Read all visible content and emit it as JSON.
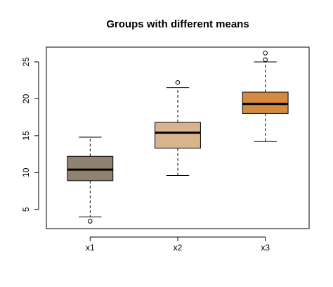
{
  "chart_data": {
    "type": "box",
    "title": "Groups with different means",
    "xlabel": "",
    "ylabel": "",
    "ylim": [
      2.4,
      27.0
    ],
    "yticks": [
      5,
      10,
      15,
      20,
      25
    ],
    "categories": [
      "x1",
      "x2",
      "x3"
    ],
    "boxes": [
      {
        "category": "x1",
        "min": 4.0,
        "q1": 8.9,
        "median": 10.4,
        "q3": 12.2,
        "max": 14.8,
        "outliers": [
          3.4
        ],
        "color": "#8f8270"
      },
      {
        "category": "x2",
        "min": 9.6,
        "q1": 13.3,
        "median": 15.4,
        "q3": 16.8,
        "max": 21.5,
        "outliers": [
          22.2
        ],
        "color": "#d8b48c"
      },
      {
        "category": "x3",
        "min": 14.2,
        "q1": 18.0,
        "median": 19.3,
        "q3": 20.9,
        "max": 25.0,
        "outliers": [
          25.3,
          26.2
        ],
        "color": "#d58a43"
      }
    ],
    "grid": false,
    "legend": "none"
  }
}
